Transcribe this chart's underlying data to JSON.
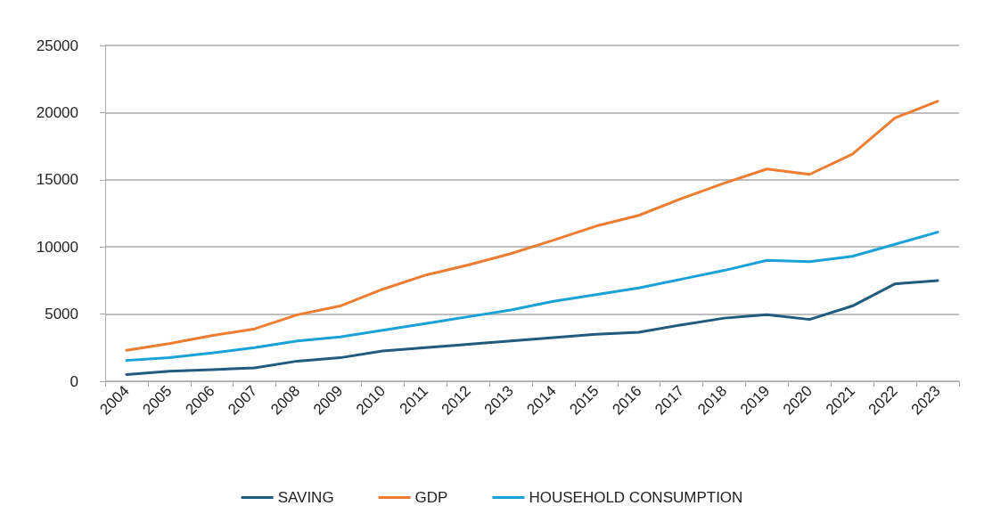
{
  "chart_data": {
    "type": "line",
    "categories": [
      "2004",
      "2005",
      "2006",
      "2007",
      "2008",
      "2009",
      "2010",
      "2011",
      "2012",
      "2013",
      "2014",
      "2015",
      "2016",
      "2017",
      "2018",
      "2019",
      "2020",
      "2021",
      "2022",
      "2023"
    ],
    "series": [
      {
        "name": "SAVING",
        "color": "#1f5c7e",
        "values": [
          500,
          750,
          870,
          1000,
          1500,
          1750,
          2250,
          2500,
          2750,
          3000,
          3250,
          3500,
          3650,
          4200,
          4700,
          4950,
          4600,
          5600,
          7250,
          7500
        ]
      },
      {
        "name": "GDP",
        "color": "#ed7d31",
        "values": [
          2300,
          2800,
          3400,
          3900,
          4950,
          5600,
          6850,
          7900,
          8650,
          9500,
          10500,
          11550,
          12350,
          13600,
          14750,
          15800,
          15400,
          16900,
          19600,
          20850
        ]
      },
      {
        "name": "HOUSEHOLD CONSUMPTION",
        "color": "#1aa2d8",
        "values": [
          1550,
          1750,
          2100,
          2500,
          3000,
          3300,
          3800,
          4300,
          4800,
          5300,
          5950,
          6450,
          6950,
          7600,
          8250,
          9000,
          8900,
          9300,
          10200,
          11100
        ]
      }
    ],
    "ylim": [
      0,
      25000
    ],
    "yticks": [
      0,
      5000,
      10000,
      15000,
      20000,
      25000
    ],
    "grid": "y",
    "legend": "bottom",
    "marker": "none",
    "line_style": "solid"
  }
}
